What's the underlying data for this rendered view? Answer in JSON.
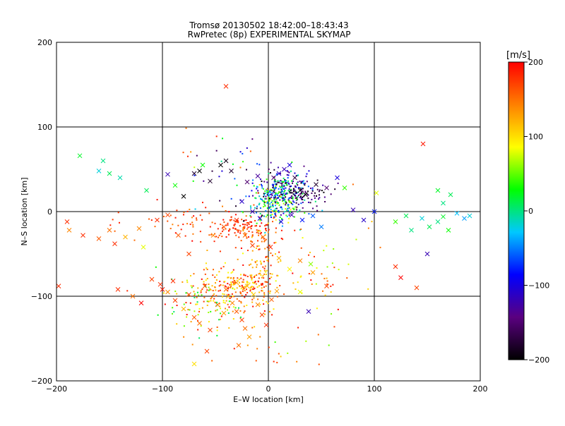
{
  "chart_data": {
    "type": "scatter",
    "title": "Tromsø 20130502 18:42:00–18:43:43",
    "subtitle": "RwPretec (8p) EXPERIMENTAL SKYMAP",
    "xlabel": "E–W location [km]",
    "ylabel": "N–S location [km]",
    "xlim": [
      -200,
      200
    ],
    "ylim": [
      -200,
      200
    ],
    "xticks": [
      -200,
      -100,
      0,
      100,
      200
    ],
    "yticks": [
      -200,
      -100,
      0,
      100,
      200
    ],
    "grid": true,
    "colorbar": {
      "label": "[m/s]",
      "min": -200,
      "max": 200,
      "ticks": [
        200,
        100,
        0,
        -100,
        -200
      ],
      "colors": [
        "#000000",
        "#5a0080",
        "#0000ff",
        "#00c8ff",
        "#00ff00",
        "#ffff00",
        "#ff8000",
        "#ff0000"
      ]
    },
    "marker_types": [
      "cross",
      "dot"
    ],
    "crosses": [
      [
        -40,
        148,
        180
      ],
      [
        146,
        80,
        190
      ],
      [
        -178,
        66,
        20
      ],
      [
        -156,
        60,
        0
      ],
      [
        -160,
        48,
        -20
      ],
      [
        -150,
        45,
        10
      ],
      [
        -140,
        40,
        -10
      ],
      [
        -115,
        25,
        10
      ],
      [
        -95,
        44,
        -120
      ],
      [
        -88,
        31,
        30
      ],
      [
        -80,
        18,
        -200
      ],
      [
        -70,
        45,
        -180
      ],
      [
        -65,
        48,
        -200
      ],
      [
        -55,
        36,
        -180
      ],
      [
        -45,
        55,
        -200
      ],
      [
        -40,
        60,
        -190
      ],
      [
        -35,
        48,
        -180
      ],
      [
        -20,
        35,
        -150
      ],
      [
        -10,
        42,
        -130
      ],
      [
        5,
        40,
        -150
      ],
      [
        10,
        45,
        -110
      ],
      [
        15,
        50,
        -120
      ],
      [
        20,
        55,
        -100
      ],
      [
        25,
        40,
        -170
      ],
      [
        30,
        25,
        -190
      ],
      [
        35,
        20,
        -200
      ],
      [
        45,
        32,
        -180
      ],
      [
        55,
        28,
        -150
      ],
      [
        65,
        40,
        -100
      ],
      [
        72,
        28,
        40
      ],
      [
        -190,
        -12,
        180
      ],
      [
        -188,
        -22,
        140
      ],
      [
        -175,
        -28,
        180
      ],
      [
        -160,
        -32,
        160
      ],
      [
        -150,
        -22,
        150
      ],
      [
        -145,
        -38,
        180
      ],
      [
        -135,
        -30,
        120
      ],
      [
        -122,
        -20,
        140
      ],
      [
        -118,
        -42,
        80
      ],
      [
        -105,
        -10,
        180
      ],
      [
        -95,
        -4,
        170
      ],
      [
        -85,
        -28,
        160
      ],
      [
        -75,
        -50,
        170
      ],
      [
        -52,
        -28,
        140
      ],
      [
        -42,
        -18,
        160
      ],
      [
        -30,
        -10,
        180
      ],
      [
        -22,
        -28,
        150
      ],
      [
        -15,
        -40,
        170
      ],
      [
        -5,
        -30,
        150
      ],
      [
        2,
        -42,
        180
      ],
      [
        10,
        -55,
        120
      ],
      [
        20,
        -68,
        90
      ],
      [
        30,
        -58,
        140
      ],
      [
        42,
        -72,
        130
      ],
      [
        55,
        -88,
        170
      ],
      [
        -142,
        -92,
        180
      ],
      [
        -128,
        -100,
        150
      ],
      [
        -110,
        -80,
        170
      ],
      [
        -102,
        -86,
        180
      ],
      [
        -95,
        -95,
        140
      ],
      [
        -88,
        -105,
        170
      ],
      [
        -80,
        -115,
        120
      ],
      [
        -70,
        -125,
        160
      ],
      [
        -65,
        -132,
        150
      ],
      [
        -55,
        -140,
        170
      ],
      [
        -48,
        -110,
        150
      ],
      [
        -42,
        -120,
        130
      ],
      [
        -38,
        -100,
        120
      ],
      [
        -34,
        -108,
        140
      ],
      [
        -30,
        -118,
        160
      ],
      [
        -25,
        -128,
        170
      ],
      [
        -22,
        -138,
        150
      ],
      [
        -18,
        -148,
        130
      ],
      [
        -14,
        -98,
        110
      ],
      [
        -10,
        -110,
        140
      ],
      [
        -6,
        -122,
        170
      ],
      [
        -2,
        -134,
        180
      ],
      [
        3,
        -104,
        160
      ],
      [
        8,
        -94,
        130
      ],
      [
        -58,
        -165,
        170
      ],
      [
        -70,
        -180,
        100
      ],
      [
        -28,
        -158,
        150
      ],
      [
        -20,
        -88,
        120
      ],
      [
        -30,
        -84,
        130
      ],
      [
        -40,
        -92,
        150
      ],
      [
        -60,
        -88,
        160
      ],
      [
        -75,
        -98,
        170
      ],
      [
        -90,
        -82,
        180
      ],
      [
        -100,
        -92,
        190
      ],
      [
        -120,
        -108,
        200
      ],
      [
        -198,
        -88,
        180
      ],
      [
        120,
        -12,
        40
      ],
      [
        130,
        -5,
        10
      ],
      [
        135,
        -22,
        0
      ],
      [
        145,
        -8,
        -20
      ],
      [
        152,
        -18,
        10
      ],
      [
        160,
        -12,
        0
      ],
      [
        165,
        -6,
        20
      ],
      [
        170,
        -22,
        30
      ],
      [
        178,
        -2,
        -30
      ],
      [
        185,
        -8,
        -40
      ],
      [
        190,
        -5,
        -20
      ],
      [
        165,
        10,
        0
      ],
      [
        172,
        20,
        10
      ],
      [
        160,
        25,
        20
      ],
      [
        150,
        -50,
        -120
      ],
      [
        120,
        -65,
        180
      ],
      [
        125,
        -78,
        200
      ],
      [
        140,
        -90,
        170
      ],
      [
        102,
        22,
        80
      ],
      [
        80,
        2,
        -120
      ],
      [
        90,
        -10,
        -110
      ],
      [
        100,
        0,
        -80
      ],
      [
        50,
        -18,
        -50
      ],
      [
        42,
        -5,
        -60
      ],
      [
        32,
        -10,
        -80
      ],
      [
        22,
        -4,
        -120
      ],
      [
        12,
        -12,
        -100
      ],
      [
        -8,
        -8,
        -90
      ],
      [
        -15,
        0,
        -120
      ],
      [
        -25,
        12,
        -110
      ],
      [
        40,
        -62,
        60
      ],
      [
        30,
        -95,
        80
      ],
      [
        38,
        -118,
        -120
      ],
      [
        -62,
        55,
        30
      ]
    ],
    "dot_clusters": [
      {
        "cx": 10,
        "cy": 25,
        "sx": 12,
        "sy": 12,
        "n": 260,
        "vmin": -200,
        "vmax": 60
      },
      {
        "cx": 5,
        "cy": 5,
        "sx": 14,
        "sy": 10,
        "n": 140,
        "vmin": -80,
        "vmax": 100
      },
      {
        "cx": 30,
        "cy": 22,
        "sx": 14,
        "sy": 10,
        "n": 90,
        "vmin": -200,
        "vmax": -120
      },
      {
        "cx": -25,
        "cy": -20,
        "sx": 18,
        "sy": 8,
        "n": 120,
        "vmin": 150,
        "vmax": 200
      },
      {
        "cx": -30,
        "cy": -88,
        "sx": 18,
        "sy": 12,
        "n": 200,
        "vmin": 80,
        "vmax": 200
      },
      {
        "cx": -60,
        "cy": -110,
        "sx": 22,
        "sy": 18,
        "n": 90,
        "vmin": 0,
        "vmax": 200
      },
      {
        "cx": -5,
        "cy": -55,
        "sx": 8,
        "sy": 28,
        "n": 80,
        "vmin": 100,
        "vmax": 200
      },
      {
        "cx": -70,
        "cy": -10,
        "sx": 30,
        "sy": 10,
        "n": 50,
        "vmin": 140,
        "vmax": 200
      },
      {
        "cx": 40,
        "cy": -70,
        "sx": 30,
        "sy": 30,
        "n": 60,
        "vmin": 60,
        "vmax": 200
      },
      {
        "cx": -45,
        "cy": 40,
        "sx": 25,
        "sy": 30,
        "n": 40,
        "vmin": -200,
        "vmax": 200
      },
      {
        "cx": 0,
        "cy": -140,
        "sx": 40,
        "sy": 25,
        "n": 40,
        "vmin": 40,
        "vmax": 200
      }
    ]
  }
}
